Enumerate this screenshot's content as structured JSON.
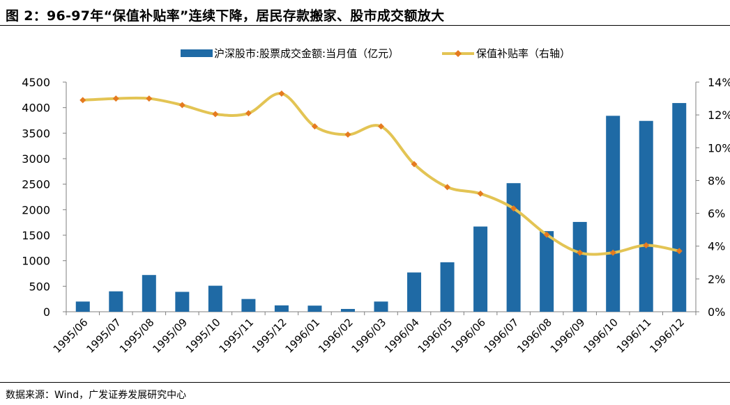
{
  "figure": {
    "title": "图 2：96-97年“保值补贴率”连续下降，居民存款搬家、股市成交额放大",
    "source": "数据来源：Wind，广发证券发展研究中心"
  },
  "chart_data": {
    "type": "bar+line",
    "categories": [
      "1995/06",
      "1995/07",
      "1995/08",
      "1995/09",
      "1995/10",
      "1995/11",
      "1995/12",
      "1996/01",
      "1996/02",
      "1996/03",
      "1996/04",
      "1996/05",
      "1996/06",
      "1996/07",
      "1996/08",
      "1996/09",
      "1996/10",
      "1996/11",
      "1996/12"
    ],
    "series": [
      {
        "name": "沪深股市:股票成交金额:当月值（亿元）",
        "type": "bar",
        "axis": "left",
        "color": "#1f6aa5",
        "values": [
          200,
          400,
          720,
          390,
          510,
          250,
          125,
          120,
          55,
          200,
          770,
          970,
          1670,
          2520,
          1580,
          1760,
          3840,
          3740,
          4090
        ]
      },
      {
        "name": "保值补贴率（右轴）",
        "type": "line",
        "axis": "right",
        "color": "#e3c454",
        "marker_color": "#e57a1f",
        "values": [
          12.9,
          13.0,
          13.0,
          12.6,
          12.05,
          12.1,
          13.3,
          11.3,
          10.8,
          11.3,
          9.0,
          7.6,
          7.2,
          6.3,
          4.7,
          3.6,
          3.6,
          4.05,
          3.7
        ]
      }
    ],
    "left_axis": {
      "ylim": [
        0,
        4500
      ],
      "ticks": [
        "0",
        "500",
        "1000",
        "1500",
        "2000",
        "2500",
        "3000",
        "3500",
        "4000",
        "4500"
      ]
    },
    "right_axis": {
      "ylim": [
        0,
        14
      ],
      "ticks": [
        "0%",
        "2%",
        "4%",
        "6%",
        "8%",
        "10%",
        "12%",
        "14%"
      ]
    },
    "legend_position": "top-center",
    "grid": false
  }
}
